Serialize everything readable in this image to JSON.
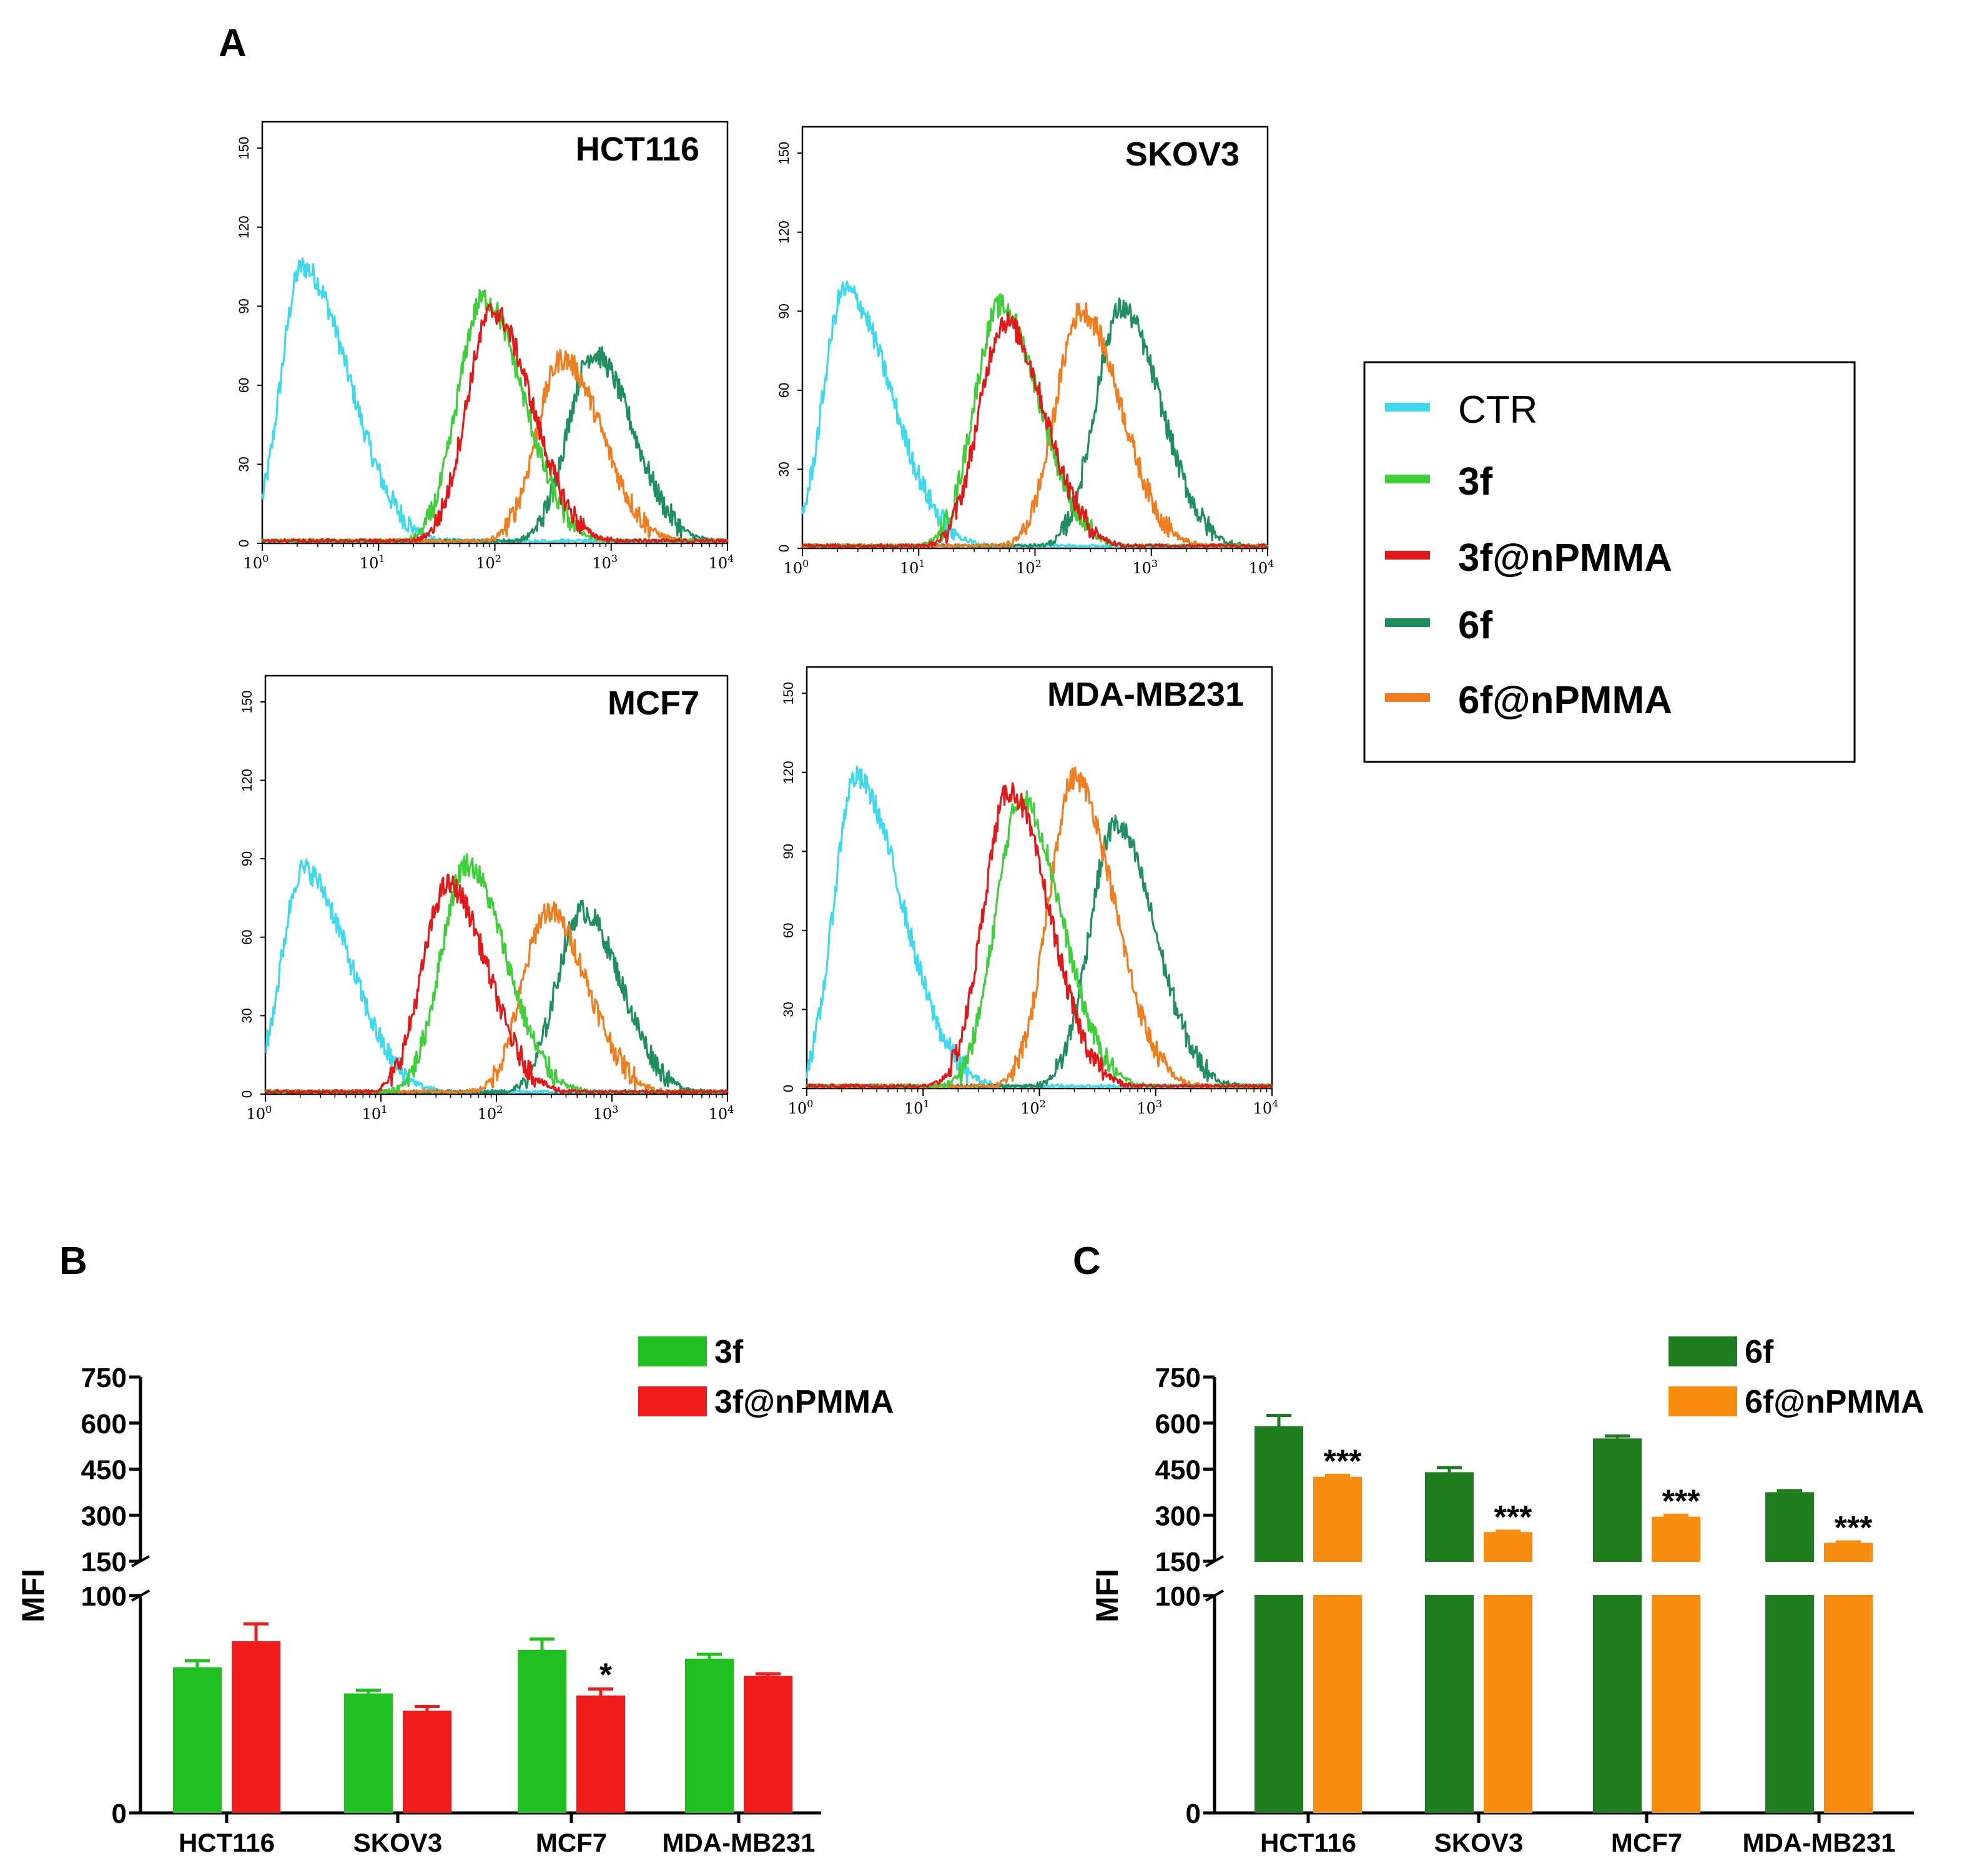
{
  "panels": {
    "a": "A",
    "b": "B",
    "c": "C"
  },
  "colors": {
    "CTR": "#3fd9ee",
    "3f": "#3ecf3a",
    "3f@nPMMA": "#e31919",
    "6f": "#1f8f5f",
    "6f@nPMMA": "#f07d1e",
    "bar_3f": "#20c020",
    "bar_3f_nPMMA": "#f01c1c",
    "bar_6f": "#1e7d1e",
    "bar_6f_nPMMA": "#f78d10"
  },
  "chart_data": [
    {
      "id": "histograms",
      "type": "line",
      "x_scale": "log",
      "xlim": [
        1,
        10000
      ],
      "x_ticks": [
        "10^0",
        "10^1",
        "10^2",
        "10^3",
        "10^4"
      ],
      "y_ticks": [
        "0",
        "30",
        "60",
        "90",
        "120",
        "150"
      ],
      "ylim": [
        0,
        160
      ],
      "legend": {
        "placement": "right",
        "entries": [
          "CTR",
          "3f",
          "3f@nPMMA",
          "6f",
          "6f@nPMMA"
        ]
      },
      "plots": [
        {
          "title": "HCT116",
          "peaks": [
            {
              "series": "CTR",
              "peak_x": 2.2,
              "height": 105
            },
            {
              "series": "3f",
              "peak_x": 80,
              "height": 93
            },
            {
              "series": "3f@nPMMA",
              "peak_x": 95,
              "height": 88
            },
            {
              "series": "6f",
              "peak_x": 700,
              "height": 72
            },
            {
              "series": "6f@nPMMA",
              "peak_x": 380,
              "height": 70
            }
          ]
        },
        {
          "title": "SKOV3",
          "peaks": [
            {
              "series": "CTR",
              "peak_x": 2.3,
              "height": 98
            },
            {
              "series": "3f",
              "peak_x": 50,
              "height": 92
            },
            {
              "series": "3f@nPMMA",
              "peak_x": 55,
              "height": 86
            },
            {
              "series": "6f",
              "peak_x": 550,
              "height": 91
            },
            {
              "series": "6f@nPMMA",
              "peak_x": 250,
              "height": 90
            }
          ]
        },
        {
          "title": "MCF7",
          "peaks": [
            {
              "series": "CTR",
              "peak_x": 2.1,
              "height": 86
            },
            {
              "series": "3f",
              "peak_x": 55,
              "height": 88
            },
            {
              "series": "3f@nPMMA",
              "peak_x": 38,
              "height": 80
            },
            {
              "series": "6f",
              "peak_x": 550,
              "height": 70
            },
            {
              "series": "6f@nPMMA",
              "peak_x": 280,
              "height": 70
            }
          ]
        },
        {
          "title": "MDA-MB231",
          "peaks": [
            {
              "series": "CTR",
              "peak_x": 2.6,
              "height": 118
            },
            {
              "series": "3f",
              "peak_x": 70,
              "height": 110
            },
            {
              "series": "3f@nPMMA",
              "peak_x": 55,
              "height": 113
            },
            {
              "series": "6f",
              "peak_x": 450,
              "height": 100
            },
            {
              "series": "6f@nPMMA",
              "peak_x": 200,
              "height": 118
            }
          ]
        }
      ]
    },
    {
      "id": "B",
      "type": "bar",
      "ylabel": "MFI",
      "categories": [
        "HCT116",
        "SKOV3",
        "MCF7",
        "MDA-MB231"
      ],
      "series": [
        {
          "name": "3f",
          "values": [
            67,
            55,
            75,
            71
          ],
          "errors": [
            3,
            1.5,
            5,
            2
          ]
        },
        {
          "name": "3f@nPMMA",
          "values": [
            79,
            47,
            54,
            63
          ],
          "errors": [
            8,
            2,
            3,
            1
          ]
        }
      ],
      "y_break": {
        "lower": [
          0,
          100
        ],
        "upper": [
          150,
          750
        ]
      },
      "y_ticks_lower": [
        "0",
        "100"
      ],
      "y_ticks_upper": [
        "150",
        "300",
        "450",
        "600",
        "750"
      ],
      "annotations": [
        {
          "category": "MCF7",
          "series": "3f@nPMMA",
          "text": "*"
        }
      ],
      "legend": "top-right"
    },
    {
      "id": "C",
      "type": "bar",
      "ylabel": "MFI",
      "categories": [
        "HCT116",
        "SKOV3",
        "MCF7",
        "MDA-MB231"
      ],
      "series": [
        {
          "name": "6f",
          "values": [
            590,
            440,
            550,
            375
          ],
          "errors": [
            35,
            15,
            8,
            5
          ]
        },
        {
          "name": "6f@nPMMA",
          "values": [
            425,
            245,
            295,
            210
          ],
          "errors": [
            5,
            3,
            5,
            3
          ]
        }
      ],
      "y_break": {
        "lower": [
          0,
          100
        ],
        "upper": [
          150,
          750
        ]
      },
      "y_ticks_lower": [
        "0",
        "100"
      ],
      "y_ticks_upper": [
        "150",
        "300",
        "450",
        "600",
        "750"
      ],
      "annotations": [
        {
          "category": "HCT116",
          "series": "6f@nPMMA",
          "text": "***"
        },
        {
          "category": "SKOV3",
          "series": "6f@nPMMA",
          "text": "***"
        },
        {
          "category": "MCF7",
          "series": "6f@nPMMA",
          "text": "***"
        },
        {
          "category": "MDA-MB231",
          "series": "6f@nPMMA",
          "text": "***"
        }
      ],
      "legend": "top-right"
    }
  ]
}
